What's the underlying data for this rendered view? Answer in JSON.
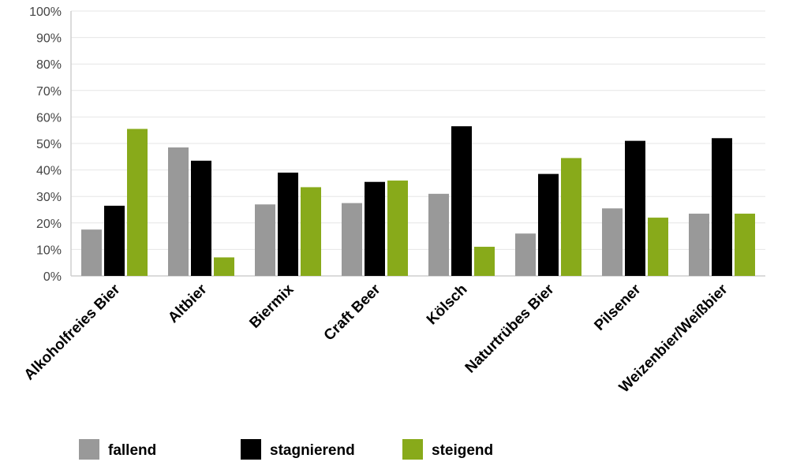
{
  "chart_data": {
    "type": "bar",
    "title": "",
    "xlabel": "",
    "ylabel": "",
    "ylim": [
      0,
      100
    ],
    "yticks": [
      "0%",
      "10%",
      "20%",
      "30%",
      "40%",
      "50%",
      "60%",
      "70%",
      "80%",
      "90%",
      "100%"
    ],
    "grid": true,
    "legend_position": "bottom",
    "categories": [
      "Alkoholfreies Bier",
      "Altbier",
      "Biermix",
      "Craft Beer",
      "Kölsch",
      "Naturtrübes Bier",
      "Pilsener",
      "Weizenbier/Weißbier"
    ],
    "series": [
      {
        "name": "fallend",
        "color": "#999999",
        "values": [
          17.5,
          48.5,
          27,
          27.5,
          31,
          16,
          25.5,
          23.5
        ]
      },
      {
        "name": "stagnierend",
        "color": "#000000",
        "values": [
          26.5,
          43.5,
          39,
          35.5,
          56.5,
          38.5,
          51,
          52
        ]
      },
      {
        "name": "steigend",
        "color": "#88aa1a",
        "values": [
          55.5,
          7,
          33.5,
          36,
          11,
          44.5,
          22,
          23.5
        ]
      }
    ]
  }
}
